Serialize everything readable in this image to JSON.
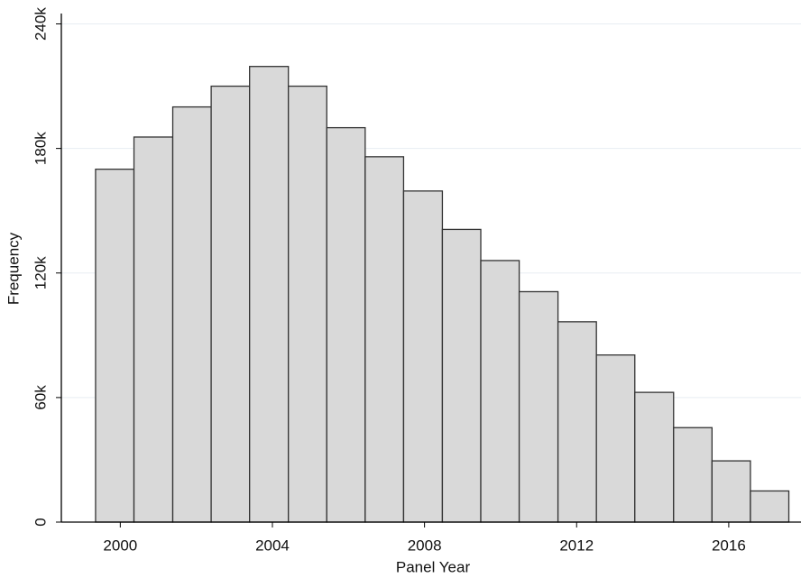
{
  "chart_data": {
    "type": "histogram",
    "x_label": "Panel Year",
    "y_label": "Frequency",
    "bins": [
      1999.35,
      2000.36,
      2001.38,
      2002.39,
      2003.4,
      2004.42,
      2005.43,
      2006.44,
      2007.45,
      2008.47,
      2009.48,
      2010.49,
      2011.51,
      2012.52,
      2013.53,
      2014.55,
      2015.56,
      2016.57,
      2017.58
    ],
    "values": [
      170000,
      185500,
      200000,
      210000,
      219500,
      210000,
      190000,
      176000,
      159500,
      141000,
      126000,
      111000,
      96500,
      80500,
      62500,
      45500,
      29500,
      15000
    ],
    "color": "#d9d9d9",
    "edge_color": "#333333",
    "xlim": [
      1998.45,
      2017.9
    ],
    "xticks": [
      2000,
      2004,
      2008,
      2012,
      2016
    ],
    "ylim": [
      0,
      245000
    ],
    "yticks": [
      0,
      {
        "value": 60000,
        "label": "60k"
      },
      {
        "value": 120000,
        "label": "120k"
      },
      {
        "value": 180000,
        "label": "180k"
      },
      {
        "value": 240000,
        "label": "240k"
      }
    ],
    "grid": true
  }
}
